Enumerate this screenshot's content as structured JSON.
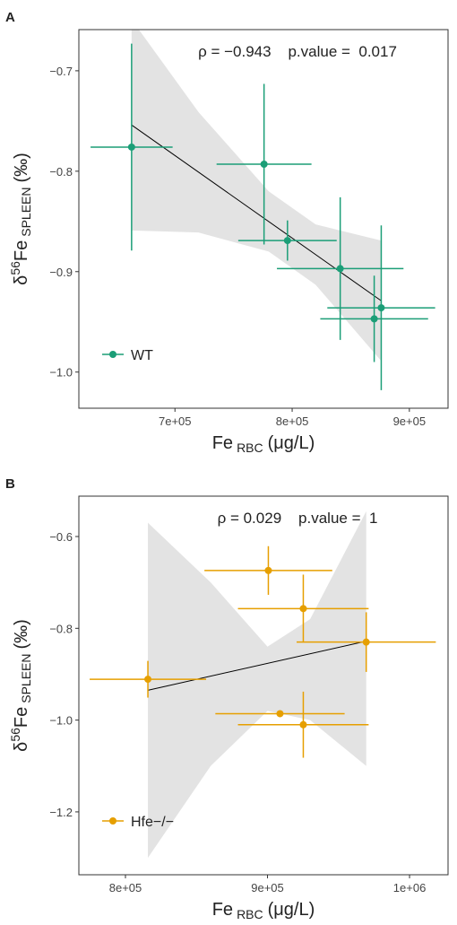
{
  "chart_data": [
    {
      "type": "scatter",
      "panel": "A",
      "annotation": "ρ = −0.943    p.value =  0.017",
      "xlabel": {
        "main": "Fe",
        "sub": "RBC",
        "unit": "(μg/L)"
      },
      "ylabel": {
        "symbol": "δ",
        "sup": "56",
        "main": "Fe",
        "sub": "SPLEEN",
        "unit": "(‰)"
      },
      "xlim": [
        618000,
        933000
      ],
      "ylim": [
        -1.036,
        -0.659
      ],
      "xticks": [
        {
          "value": 700000,
          "label": "7e+05"
        },
        {
          "value": 800000,
          "label": "8e+05"
        },
        {
          "value": 900000,
          "label": "9e+05"
        }
      ],
      "yticks": [
        {
          "value": -1.0,
          "label": "−1.0"
        },
        {
          "value": -0.9,
          "label": "−0.9"
        },
        {
          "value": -0.8,
          "label": "−0.8"
        },
        {
          "value": -0.7,
          "label": "−0.7"
        }
      ],
      "series": [
        {
          "name": "WT",
          "color": "#1b9e77",
          "x": [
            663000,
            776000,
            796000,
            841000,
            870000,
            876000
          ],
          "y": [
            -0.776,
            -0.793,
            -0.869,
            -0.897,
            -0.947,
            -0.936
          ],
          "xerr": [
            35000,
            40500,
            42000,
            54000,
            46000,
            46000
          ],
          "yerr": [
            0.103,
            0.08,
            0.02,
            0.071,
            0.043,
            0.082
          ]
        }
      ],
      "fit": {
        "x": [
          663000,
          876000
        ],
        "y": [
          -0.754,
          -0.929
        ]
      },
      "band": {
        "x": [
          663000,
          720000,
          780000,
          820000,
          876000
        ],
        "lower": [
          -0.859,
          -0.861,
          -0.88,
          -0.913,
          -0.989
        ],
        "upper": [
          -0.649,
          -0.741,
          -0.82,
          -0.853,
          -0.869
        ]
      }
    },
    {
      "type": "scatter",
      "panel": "B",
      "annotation": "ρ = 0.029    p.value =  1",
      "xlabel": {
        "main": "Fe",
        "sub": "RBC",
        "unit": "(μg/L)"
      },
      "ylabel": {
        "symbol": "δ",
        "sup": "56",
        "main": "Fe",
        "sub": "SPLEEN",
        "unit": "(‰)"
      },
      "xlim": [
        767200,
        1027100
      ],
      "ylim": [
        -1.337,
        -0.512
      ],
      "xticks": [
        {
          "value": 800000,
          "label": "8e+05"
        },
        {
          "value": 900000,
          "label": "9e+05"
        },
        {
          "value": 1000000,
          "label": "1e+06"
        }
      ],
      "yticks": [
        {
          "value": -1.2,
          "label": "−1.2"
        },
        {
          "value": -1.0,
          "label": "−1.0"
        },
        {
          "value": -0.8,
          "label": "−0.8"
        },
        {
          "value": -0.6,
          "label": "−0.6"
        }
      ],
      "series": [
        {
          "name": "Hfe−/−",
          "color": "#e69f00",
          "x": [
            815800,
            900600,
            925200,
            969500,
            908800,
            925200
          ],
          "y": [
            -0.911,
            -0.674,
            -0.757,
            -0.83,
            -0.986,
            -1.01
          ],
          "xerr": [
            41000,
            45000,
            46000,
            49000,
            45500,
            46000
          ],
          "yerr": [
            0.04,
            0.053,
            0.074,
            0.065,
            0.005,
            0.072
          ]
        }
      ],
      "fit": {
        "x": [
          815800,
          969500
        ],
        "y": [
          -0.935,
          -0.828
        ]
      },
      "band": {
        "x": [
          815800,
          860000,
          900000,
          930000,
          969500
        ],
        "lower": [
          -1.3,
          -1.1,
          -0.98,
          -1.0,
          -1.1
        ],
        "upper": [
          -0.57,
          -0.7,
          -0.84,
          -0.78,
          -0.545
        ]
      }
    }
  ]
}
